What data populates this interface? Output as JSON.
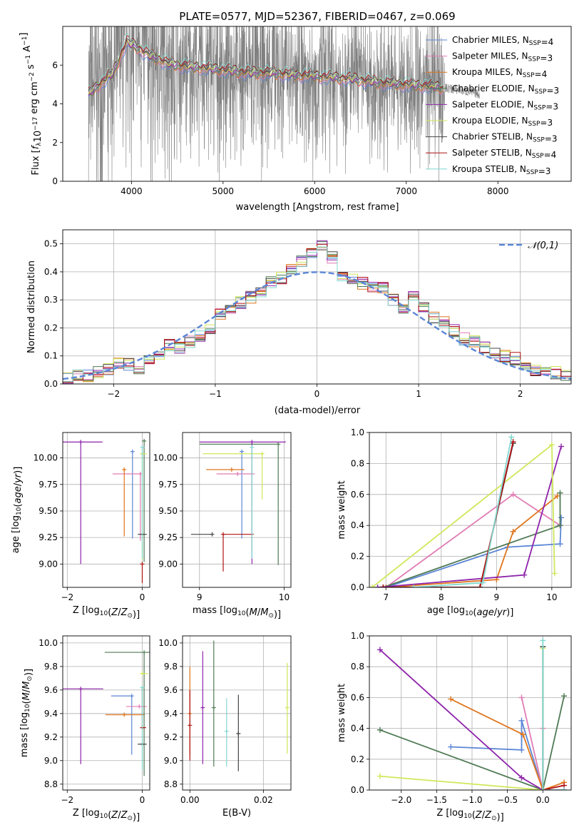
{
  "colors": {
    "chabrier_miles": "#5b86d6",
    "salpeter_miles": "#e07cb4",
    "kroupa_miles": "#e0761d",
    "chabrier_elodie": "#4f7b55",
    "salpeter_elodie": "#8e24aa",
    "kroupa_elodie": "#cfe85a",
    "chabrier_stelib": "#444444",
    "salpeter_stelib": "#b01010",
    "kroupa_stelib": "#80d8cf",
    "data": "#808080",
    "normal": "#5b86d6",
    "grid": "#b0b0b0"
  },
  "chart_data": [
    {
      "type": "line",
      "title": "PLATE=0577, MJD=52367, FIBERID=0467, z=0.069",
      "xlabel": "wavelength [Angstrom, rest frame]",
      "ylabel": "Flux [f_λ10^-17 erg cm^-2 s^-1 A^-1]",
      "xlim": [
        3250,
        8800
      ],
      "ylim": [
        0,
        8
      ],
      "xticks": [
        "4000",
        "5000",
        "6000",
        "7000",
        "8000"
      ],
      "yticks": [
        "0",
        "2",
        "4",
        "6"
      ],
      "grid": false,
      "legend_position": "right",
      "series": [
        {
          "name": "Chabrier MILES, N_SSP=4",
          "color_key": "chabrier_miles"
        },
        {
          "name": "Salpeter MILES, N_SSP=3",
          "color_key": "salpeter_miles"
        },
        {
          "name": "Kroupa MILES, N_SSP=4",
          "color_key": "kroupa_miles"
        },
        {
          "name": "Chabrier ELODIE, N_SSP=3",
          "color_key": "chabrier_elodie"
        },
        {
          "name": "Salpeter ELODIE, N_SSP=3",
          "color_key": "salpeter_elodie"
        },
        {
          "name": "Kroupa ELODIE, N_SSP=3",
          "color_key": "kroupa_elodie"
        },
        {
          "name": "Chabrier STELIB, N_SSP=3",
          "color_key": "chabrier_stelib"
        },
        {
          "name": "Salpeter STELIB, N_SSP=4",
          "color_key": "salpeter_stelib"
        },
        {
          "name": "Kroupa STELIB, N_SSP=3",
          "color_key": "kroupa_stelib"
        }
      ],
      "model_continuum": {
        "x": [
          3530,
          3600,
          3700,
          3800,
          3900,
          3950,
          4000,
          4100,
          4200,
          4300,
          4400,
          4500,
          4700,
          4900,
          5100,
          5300,
          5500,
          5800,
          6100,
          6400,
          6700,
          7000,
          7300,
          7600,
          7800
        ],
        "y": [
          4.5,
          4.8,
          5.2,
          5.6,
          6.7,
          7.2,
          7.1,
          6.8,
          6.5,
          6.3,
          6.1,
          6.0,
          5.9,
          5.8,
          5.7,
          5.6,
          5.6,
          5.5,
          5.4,
          5.3,
          5.1,
          5.0,
          4.9,
          4.7,
          4.5
        ]
      }
    },
    {
      "type": "histogram",
      "xlabel": "(data-model)/error",
      "ylabel": "Normed distribution",
      "xlim": [
        -2.5,
        2.5
      ],
      "ylim": [
        0,
        0.55
      ],
      "xticks": [
        "−2",
        "−1",
        "0",
        "1",
        "2"
      ],
      "yticks": [
        "0.0",
        "0.1",
        "0.2",
        "0.3",
        "0.4",
        "0.5"
      ],
      "grid": true,
      "legend_position": "upper right",
      "legend": "𝒩(0,1)",
      "bin_edges": [
        -2.5,
        -2.4,
        -2.3,
        -2.2,
        -2.1,
        -2.0,
        -1.9,
        -1.8,
        -1.7,
        -1.6,
        -1.5,
        -1.4,
        -1.3,
        -1.2,
        -1.1,
        -1.0,
        -0.9,
        -0.8,
        -0.7,
        -0.6,
        -0.5,
        -0.4,
        -0.3,
        -0.2,
        -0.1,
        0.0,
        0.1,
        0.2,
        0.3,
        0.4,
        0.5,
        0.6,
        0.7,
        0.8,
        0.9,
        1.0,
        1.1,
        1.2,
        1.3,
        1.4,
        1.5,
        1.6,
        1.7,
        1.8,
        1.9,
        2.0,
        2.1,
        2.2,
        2.3,
        2.4,
        2.5
      ],
      "base_density": [
        0.02,
        0.03,
        0.03,
        0.04,
        0.05,
        0.07,
        0.07,
        0.05,
        0.08,
        0.11,
        0.14,
        0.13,
        0.15,
        0.17,
        0.19,
        0.25,
        0.27,
        0.29,
        0.31,
        0.33,
        0.36,
        0.38,
        0.41,
        0.44,
        0.47,
        0.49,
        0.45,
        0.39,
        0.37,
        0.36,
        0.35,
        0.34,
        0.3,
        0.27,
        0.31,
        0.28,
        0.24,
        0.22,
        0.19,
        0.16,
        0.15,
        0.13,
        0.11,
        0.1,
        0.09,
        0.06,
        0.05,
        0.04,
        0.04,
        0.03
      ]
    },
    {
      "type": "errorbar",
      "xlabel": "Z [log10(Z/Z⊙)]",
      "ylabel": "age [log10(age/yr)]",
      "xlim": [
        -2.12,
        0.2
      ],
      "ylim": [
        8.78,
        10.24
      ],
      "xticks": [
        "−2",
        "0"
      ],
      "yticks": [
        "9.00",
        "9.25",
        "9.50",
        "9.75",
        "10.00"
      ],
      "grid": true,
      "points": [
        {
          "color_key": "chabrier_miles",
          "x": -0.26,
          "y": 10.06,
          "xerr": [
            0.0,
            0.0
          ],
          "yerr": [
            0.82,
            0.0
          ]
        },
        {
          "color_key": "salpeter_miles",
          "x": -0.05,
          "y": 9.85,
          "xerr": [
            0.74,
            0.0
          ],
          "yerr": [
            0.63,
            0.0
          ]
        },
        {
          "color_key": "kroupa_miles",
          "x": -0.48,
          "y": 9.89,
          "xerr": [
            0.0,
            0.0
          ],
          "yerr": [
            0.63,
            0.0
          ]
        },
        {
          "color_key": "chabrier_elodie",
          "x": 0.05,
          "y": 10.16,
          "xerr": [
            0.0,
            0.0
          ],
          "yerr": [
            1.14,
            0.0
          ]
        },
        {
          "color_key": "salpeter_elodie",
          "x": -1.64,
          "y": 10.15,
          "xerr": [
            0.58,
            0.58
          ],
          "yerr": [
            1.15,
            0.0
          ]
        },
        {
          "color_key": "kroupa_elodie",
          "x": 0.0,
          "y": 10.04,
          "xerr": [
            0.0,
            0.12
          ],
          "yerr": [
            1.0,
            0.0
          ]
        },
        {
          "color_key": "chabrier_stelib",
          "x": 0.0,
          "y": 9.28,
          "xerr": [
            0.12,
            0.12
          ],
          "yerr": [
            0.0,
            0.0
          ]
        },
        {
          "color_key": "salpeter_stelib",
          "x": 0.0,
          "y": 9.0,
          "xerr": [
            0.0,
            0.0
          ],
          "yerr": [
            0.18,
            0.0
          ]
        },
        {
          "color_key": "kroupa_stelib",
          "x": 0.0,
          "y": 10.1,
          "xerr": [
            0.0,
            0.0
          ],
          "yerr": [
            1.05,
            0.0
          ]
        }
      ]
    },
    {
      "type": "errorbar",
      "xlabel": "mass [log10(M/M⊙)]",
      "ylabel": "",
      "xlim": [
        8.8,
        10.08
      ],
      "ylim": [
        8.78,
        10.24
      ],
      "xticks": [
        "9",
        "10"
      ],
      "yticks": [
        "9.00",
        "9.25",
        "9.50",
        "9.75",
        "10.00"
      ],
      "grid": true,
      "points": [
        {
          "color_key": "chabrier_miles",
          "x": 9.5,
          "y": 10.06,
          "xerr": [
            0.0,
            0.0
          ],
          "yerr": [
            0.82,
            0.0
          ]
        },
        {
          "color_key": "salpeter_miles",
          "x": 9.45,
          "y": 9.85,
          "xerr": [
            0.25,
            0.2
          ],
          "yerr": [
            0.0,
            0.0
          ]
        },
        {
          "color_key": "kroupa_miles",
          "x": 9.38,
          "y": 9.89,
          "xerr": [
            0.3,
            0.15
          ],
          "yerr": [
            0.0,
            0.0
          ]
        },
        {
          "color_key": "chabrier_elodie",
          "x": 9.93,
          "y": 10.13,
          "xerr": [
            0.93,
            0.0
          ],
          "yerr": [
            1.14,
            0.0
          ]
        },
        {
          "color_key": "salpeter_elodie",
          "x": 9.62,
          "y": 10.15,
          "xerr": [
            0.62,
            0.4
          ],
          "yerr": [
            1.15,
            0.0
          ]
        },
        {
          "color_key": "kroupa_elodie",
          "x": 9.74,
          "y": 10.04,
          "xerr": [
            0.7,
            0.0
          ],
          "yerr": [
            0.43,
            0.0
          ]
        },
        {
          "color_key": "chabrier_stelib",
          "x": 9.15,
          "y": 9.28,
          "xerr": [
            0.25,
            0.0
          ],
          "yerr": [
            0.0,
            0.0
          ]
        },
        {
          "color_key": "salpeter_stelib",
          "x": 9.28,
          "y": 9.28,
          "xerr": [
            0.0,
            0.36
          ],
          "yerr": [
            0.35,
            0.0
          ]
        },
        {
          "color_key": "kroupa_stelib",
          "x": 9.62,
          "y": 10.1,
          "xerr": [
            0.0,
            0.0
          ],
          "yerr": [
            1.05,
            0.0
          ]
        }
      ]
    },
    {
      "type": "line",
      "xlabel": "age [log10(age/yr)]",
      "ylabel": "mass weight",
      "xlim": [
        6.7,
        10.35
      ],
      "ylim": [
        0,
        1.0
      ],
      "xticks": [
        "7",
        "8",
        "9",
        "10"
      ],
      "yticks": [
        "0.0",
        "0.2",
        "0.4",
        "0.6",
        "0.8",
        "1.0"
      ],
      "grid": true,
      "series": [
        {
          "color_key": "chabrier_miles",
          "x": [
            7.0,
            9.2,
            10.15,
            10.17
          ],
          "y": [
            0.0,
            0.26,
            0.28,
            0.45
          ]
        },
        {
          "color_key": "salpeter_miles",
          "x": [
            7.0,
            9.3,
            10.15
          ],
          "y": [
            0.0,
            0.6,
            0.4
          ]
        },
        {
          "color_key": "kroupa_miles",
          "x": [
            7.0,
            9.0,
            9.3,
            10.1
          ],
          "y": [
            0.0,
            0.05,
            0.36,
            0.59
          ]
        },
        {
          "color_key": "chabrier_elodie",
          "x": [
            6.95,
            10.15,
            10.15
          ],
          "y": [
            0.0,
            0.4,
            0.61
          ]
        },
        {
          "color_key": "salpeter_elodie",
          "x": [
            6.85,
            9.5,
            10.17
          ],
          "y": [
            0.0,
            0.08,
            0.91
          ]
        },
        {
          "color_key": "kroupa_elodie",
          "x": [
            6.75,
            10.0,
            10.05
          ],
          "y": [
            0.0,
            0.92,
            0.09
          ]
        },
        {
          "color_key": "chabrier_stelib",
          "x": [
            6.95,
            8.7,
            9.3
          ],
          "y": [
            0.0,
            0.0,
            0.93
          ]
        },
        {
          "color_key": "salpeter_stelib",
          "x": [
            6.95,
            8.7,
            9.3
          ],
          "y": [
            0.0,
            0.0,
            0.94
          ]
        },
        {
          "color_key": "kroupa_stelib",
          "x": [
            7.5,
            8.75,
            9.27
          ],
          "y": [
            0.0,
            0.03,
            0.97
          ]
        }
      ]
    },
    {
      "type": "errorbar",
      "xlabel": "Z [log10(Z/Z⊙)]",
      "ylabel": "mass [log10(M/M⊙)]",
      "xlim": [
        -2.12,
        0.2
      ],
      "ylim": [
        8.75,
        10.06
      ],
      "xticks": [
        "−2",
        "0"
      ],
      "yticks": [
        "8.8",
        "9.0",
        "9.2",
        "9.4",
        "9.6",
        "9.8",
        "10.0"
      ],
      "grid": true,
      "points": [
        {
          "color_key": "chabrier_miles",
          "x": -0.28,
          "y": 9.55,
          "xerr": [
            0.55,
            0.0
          ],
          "yerr": [
            0.5,
            0.0
          ]
        },
        {
          "color_key": "salpeter_miles",
          "x": -0.08,
          "y": 9.46,
          "xerr": [
            0.35,
            0.2
          ],
          "yerr": [
            0.0,
            0.0
          ]
        },
        {
          "color_key": "kroupa_miles",
          "x": -0.48,
          "y": 9.39,
          "xerr": [
            0.5,
            0.55
          ],
          "yerr": [
            0.0,
            0.0
          ]
        },
        {
          "color_key": "chabrier_elodie",
          "x": 0.05,
          "y": 9.92,
          "xerr": [
            1.05,
            0.2
          ],
          "yerr": [
            1.05,
            0.0
          ]
        },
        {
          "color_key": "salpeter_elodie",
          "x": -1.64,
          "y": 9.61,
          "xerr": [
            0.6,
            0.6
          ],
          "yerr": [
            0.64,
            0.0
          ]
        },
        {
          "color_key": "kroupa_elodie",
          "x": 0.0,
          "y": 9.74,
          "xerr": [
            0.0,
            0.15
          ],
          "yerr": [
            0.0,
            0.0
          ]
        },
        {
          "color_key": "chabrier_stelib",
          "x": 0.0,
          "y": 9.14,
          "xerr": [
            0.12,
            0.12
          ],
          "yerr": [
            0.0,
            0.0
          ]
        },
        {
          "color_key": "salpeter_stelib",
          "x": 0.0,
          "y": 9.28,
          "xerr": [
            0.0,
            0.1
          ],
          "yerr": [
            0.0,
            0.35
          ]
        },
        {
          "color_key": "kroupa_stelib",
          "x": 0.0,
          "y": 9.62,
          "xerr": [
            0.0,
            0.0
          ],
          "yerr": [
            0.7,
            0.0
          ]
        }
      ]
    },
    {
      "type": "errorbar",
      "xlabel": "E(B-V)",
      "ylabel": "",
      "xlim": [
        -0.002,
        0.0275
      ],
      "ylim": [
        8.75,
        10.06
      ],
      "xticks": [
        "0.00",
        "0.02"
      ],
      "yticks": [
        "8.8",
        "9.0",
        "9.2",
        "9.4",
        "9.6",
        "9.8",
        "10.0"
      ],
      "grid": true,
      "points": [
        {
          "color_key": "kroupa_miles",
          "x": 0.0,
          "y": 9.4,
          "xerr": [
            0.0,
            0.0
          ],
          "yerr": [
            0.35,
            0.4
          ]
        },
        {
          "color_key": "salpeter_stelib",
          "x": 0.0,
          "y": 9.3,
          "xerr": [
            0.0,
            0.0
          ],
          "yerr": [
            0.3,
            0.3
          ]
        },
        {
          "color_key": "salpeter_elodie",
          "x": 0.0035,
          "y": 9.45,
          "xerr": [
            0.0,
            0.0
          ],
          "yerr": [
            0.48,
            0.48
          ]
        },
        {
          "color_key": "chabrier_elodie",
          "x": 0.0065,
          "y": 9.45,
          "xerr": [
            0.0,
            0.0
          ],
          "yerr": [
            0.5,
            0.57
          ]
        },
        {
          "color_key": "kroupa_stelib",
          "x": 0.01,
          "y": 9.25,
          "xerr": [
            0.0,
            0.0
          ],
          "yerr": [
            0.3,
            0.28
          ]
        },
        {
          "color_key": "chabrier_stelib",
          "x": 0.0132,
          "y": 9.23,
          "xerr": [
            0.0,
            0.0
          ],
          "yerr": [
            0.32,
            0.33
          ]
        },
        {
          "color_key": "kroupa_elodie",
          "x": 0.0265,
          "y": 9.45,
          "xerr": [
            0.0,
            0.0
          ],
          "yerr": [
            0.39,
            0.38
          ]
        }
      ]
    },
    {
      "type": "line",
      "xlabel": "Z [log10(Z/Z⊙)]",
      "ylabel": "mass weight",
      "xlim": [
        -2.45,
        0.4
      ],
      "ylim": [
        0,
        1.0
      ],
      "xticks": [
        "−2.0",
        "−1.5",
        "−1.0",
        "−0.5",
        "0.0"
      ],
      "yticks": [
        "0.0",
        "0.2",
        "0.4",
        "0.6",
        "0.8",
        "1.0"
      ],
      "grid": true,
      "series": [
        {
          "color_key": "chabrier_miles",
          "x": [
            -1.3,
            -0.3,
            -0.3,
            0.0
          ],
          "y": [
            0.28,
            0.26,
            0.45,
            0.0
          ]
        },
        {
          "color_key": "salpeter_miles",
          "x": [
            -0.3,
            0.0,
            0.0
          ],
          "y": [
            0.6,
            0.0,
            0.4
          ]
        },
        {
          "color_key": "kroupa_miles",
          "x": [
            -1.3,
            -0.28,
            0.0,
            0.3
          ],
          "y": [
            0.59,
            0.36,
            0.0,
            0.05
          ]
        },
        {
          "color_key": "chabrier_elodie",
          "x": [
            -2.3,
            0.0,
            0.3
          ],
          "y": [
            0.39,
            0.0,
            0.61
          ]
        },
        {
          "color_key": "salpeter_elodie",
          "x": [
            -2.3,
            -0.3,
            0.0,
            0.3
          ],
          "y": [
            0.91,
            0.08,
            0.0,
            0.0
          ]
        },
        {
          "color_key": "kroupa_elodie",
          "x": [
            -2.3,
            0.0,
            0.0
          ],
          "y": [
            0.09,
            0.0,
            0.92
          ]
        },
        {
          "color_key": "chabrier_stelib",
          "x": [
            0.0,
            0.0
          ],
          "y": [
            0.93,
            0.0
          ]
        },
        {
          "color_key": "salpeter_stelib",
          "x": [
            0.0,
            0.3
          ],
          "y": [
            0.0,
            0.03
          ]
        },
        {
          "color_key": "kroupa_stelib",
          "x": [
            0.0,
            0.0,
            0.3
          ],
          "y": [
            0.97,
            0.0,
            0.0
          ]
        }
      ]
    }
  ]
}
